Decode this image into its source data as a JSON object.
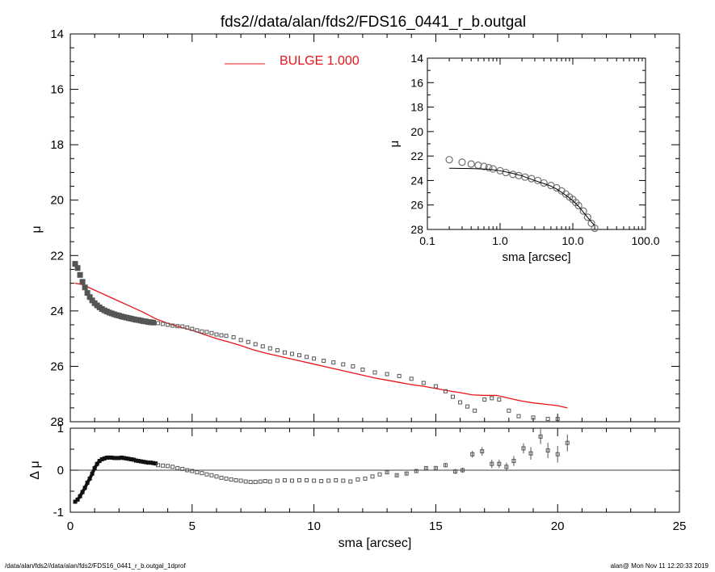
{
  "chart_data": [
    {
      "id": "main",
      "type": "scatter",
      "title": "fds2//data/alan/fds2/FDS16_0441_r_b.outgal",
      "xlabel": "",
      "ylabel": "μ",
      "xlim": [
        0,
        25
      ],
      "ylim": [
        14,
        28
      ],
      "y_inverted": true,
      "x_ticks": [
        0,
        5,
        10,
        15,
        20,
        25
      ],
      "y_ticks": [
        14,
        16,
        18,
        20,
        22,
        24,
        26,
        28
      ],
      "legend": {
        "label": "BULGE  1.000",
        "color": "#e8141a",
        "placement": "top-center"
      },
      "observed": {
        "color": "#555555",
        "points": [
          [
            0.2,
            22.3
          ],
          [
            0.3,
            22.45
          ],
          [
            0.4,
            22.7
          ],
          [
            0.5,
            22.95
          ],
          [
            0.6,
            23.15
          ],
          [
            0.7,
            23.35
          ],
          [
            0.8,
            23.5
          ],
          [
            0.9,
            23.62
          ],
          [
            1.0,
            23.72
          ],
          [
            1.1,
            23.8
          ],
          [
            1.2,
            23.87
          ],
          [
            1.3,
            23.93
          ],
          [
            1.4,
            23.98
          ],
          [
            1.5,
            24.02
          ],
          [
            1.6,
            24.06
          ],
          [
            1.7,
            24.09
          ],
          [
            1.8,
            24.12
          ],
          [
            1.9,
            24.15
          ],
          [
            2.0,
            24.17
          ],
          [
            2.1,
            24.2
          ],
          [
            2.2,
            24.22
          ],
          [
            2.3,
            24.24
          ],
          [
            2.4,
            24.26
          ],
          [
            2.5,
            24.28
          ],
          [
            2.6,
            24.3
          ],
          [
            2.7,
            24.32
          ],
          [
            2.8,
            24.33
          ],
          [
            2.9,
            24.35
          ],
          [
            3.0,
            24.37
          ],
          [
            3.1,
            24.38
          ],
          [
            3.2,
            24.4
          ],
          [
            3.3,
            24.41
          ],
          [
            3.4,
            24.42
          ],
          [
            3.6,
            24.44
          ],
          [
            3.8,
            24.47
          ],
          [
            4.0,
            24.5
          ],
          [
            4.2,
            24.53
          ],
          [
            4.4,
            24.55
          ],
          [
            4.6,
            24.56
          ],
          [
            4.8,
            24.6
          ],
          [
            5.0,
            24.65
          ],
          [
            5.2,
            24.7
          ],
          [
            5.4,
            24.74
          ],
          [
            5.6,
            24.76
          ],
          [
            5.8,
            24.8
          ],
          [
            6.0,
            24.85
          ],
          [
            6.2,
            24.88
          ],
          [
            6.4,
            24.9
          ],
          [
            6.7,
            24.95
          ],
          [
            7.0,
            25.05
          ],
          [
            7.3,
            25.12
          ],
          [
            7.6,
            25.2
          ],
          [
            7.9,
            25.28
          ],
          [
            8.2,
            25.35
          ],
          [
            8.5,
            25.42
          ],
          [
            8.8,
            25.5
          ],
          [
            9.1,
            25.55
          ],
          [
            9.4,
            25.6
          ],
          [
            9.7,
            25.66
          ],
          [
            10.0,
            25.72
          ],
          [
            10.4,
            25.8
          ],
          [
            10.8,
            25.86
          ],
          [
            11.2,
            25.93
          ],
          [
            11.6,
            26.0
          ],
          [
            12.0,
            26.12
          ],
          [
            12.5,
            26.22
          ],
          [
            13.0,
            26.28
          ],
          [
            13.5,
            26.35
          ],
          [
            14.0,
            26.45
          ],
          [
            14.5,
            26.6
          ],
          [
            15.0,
            26.72
          ],
          [
            15.4,
            26.9
          ],
          [
            15.7,
            27.1
          ],
          [
            16.0,
            27.3
          ],
          [
            16.3,
            27.45
          ],
          [
            16.6,
            27.6
          ],
          [
            17.0,
            27.2
          ],
          [
            17.3,
            27.15
          ],
          [
            17.6,
            27.2
          ],
          [
            18.0,
            27.6
          ],
          [
            18.4,
            27.8
          ],
          [
            19.0,
            27.85
          ],
          [
            19.6,
            27.9
          ],
          [
            20.0,
            27.9
          ]
        ]
      },
      "model": {
        "color": "#e8141a",
        "points": [
          [
            0.2,
            23.0
          ],
          [
            0.5,
            23.05
          ],
          [
            1.0,
            23.25
          ],
          [
            1.5,
            23.45
          ],
          [
            2.0,
            23.65
          ],
          [
            2.5,
            23.85
          ],
          [
            3.0,
            24.05
          ],
          [
            3.5,
            24.28
          ],
          [
            4.0,
            24.45
          ],
          [
            4.5,
            24.58
          ],
          [
            5.0,
            24.7
          ],
          [
            5.5,
            24.85
          ],
          [
            6.0,
            25.0
          ],
          [
            6.5,
            25.12
          ],
          [
            7.0,
            25.25
          ],
          [
            7.5,
            25.4
          ],
          [
            8.0,
            25.52
          ],
          [
            8.5,
            25.62
          ],
          [
            9.0,
            25.72
          ],
          [
            9.5,
            25.82
          ],
          [
            10.0,
            25.92
          ],
          [
            10.5,
            26.02
          ],
          [
            11.0,
            26.12
          ],
          [
            11.5,
            26.22
          ],
          [
            12.0,
            26.32
          ],
          [
            12.5,
            26.42
          ],
          [
            13.0,
            26.5
          ],
          [
            13.5,
            26.58
          ],
          [
            14.0,
            26.66
          ],
          [
            14.5,
            26.72
          ],
          [
            15.0,
            26.8
          ],
          [
            15.5,
            26.88
          ],
          [
            16.0,
            26.95
          ],
          [
            16.5,
            27.03
          ],
          [
            17.0,
            27.05
          ],
          [
            17.5,
            27.05
          ],
          [
            18.0,
            27.15
          ],
          [
            18.5,
            27.25
          ],
          [
            19.0,
            27.32
          ],
          [
            19.5,
            27.37
          ],
          [
            20.0,
            27.42
          ],
          [
            20.4,
            27.5
          ]
        ]
      }
    },
    {
      "id": "inset",
      "type": "scatter",
      "title": "",
      "xlabel": "sma [arcsec]",
      "ylabel": "μ",
      "x_scale": "log",
      "xlim": [
        0.1,
        100.0
      ],
      "ylim": [
        14,
        28
      ],
      "y_inverted": true,
      "x_ticks": [
        "0.1",
        "1.0",
        "10.0",
        "100.0"
      ],
      "y_ticks": [
        14,
        16,
        18,
        20,
        22,
        24,
        26,
        28
      ],
      "observed": {
        "color": "#707070",
        "points": [
          [
            0.2,
            22.3
          ],
          [
            0.3,
            22.5
          ],
          [
            0.4,
            22.65
          ],
          [
            0.5,
            22.75
          ],
          [
            0.6,
            22.85
          ],
          [
            0.7,
            22.95
          ],
          [
            0.8,
            23.05
          ],
          [
            1.0,
            23.2
          ],
          [
            1.2,
            23.35
          ],
          [
            1.5,
            23.5
          ],
          [
            1.8,
            23.6
          ],
          [
            2.2,
            23.72
          ],
          [
            2.7,
            23.85
          ],
          [
            3.3,
            24.0
          ],
          [
            4.0,
            24.2
          ],
          [
            5.0,
            24.4
          ],
          [
            6.0,
            24.6
          ],
          [
            7.0,
            24.85
          ],
          [
            8.0,
            25.1
          ],
          [
            9.0,
            25.35
          ],
          [
            10.0,
            25.55
          ],
          [
            11.0,
            25.8
          ],
          [
            12.0,
            26.05
          ],
          [
            14.0,
            26.5
          ],
          [
            16.0,
            27.0
          ],
          [
            18.0,
            27.5
          ],
          [
            20.0,
            27.9
          ]
        ]
      },
      "model": {
        "color": "#000000",
        "points": [
          [
            0.2,
            23.0
          ],
          [
            0.4,
            23.02
          ],
          [
            0.7,
            23.08
          ],
          [
            1.0,
            23.2
          ],
          [
            1.5,
            23.42
          ],
          [
            2.0,
            23.62
          ],
          [
            3.0,
            24.0
          ],
          [
            4.0,
            24.25
          ],
          [
            5.0,
            24.45
          ],
          [
            6.0,
            24.7
          ],
          [
            8.0,
            25.2
          ],
          [
            10.0,
            25.65
          ],
          [
            12.0,
            26.1
          ],
          [
            14.0,
            26.6
          ],
          [
            17.0,
            27.2
          ],
          [
            20.0,
            27.7
          ]
        ]
      }
    },
    {
      "id": "residual",
      "type": "scatter",
      "title": "",
      "xlabel": "sma [arcsec]",
      "ylabel": "Δ μ",
      "xlim": [
        0,
        25
      ],
      "ylim": [
        -1,
        1
      ],
      "x_ticks": [
        0,
        5,
        10,
        15,
        20,
        25
      ],
      "y_ticks": [
        -1,
        0,
        1
      ],
      "zero_line": true,
      "dense": {
        "color": "#111111",
        "points": [
          [
            0.2,
            -0.75
          ],
          [
            0.3,
            -0.7
          ],
          [
            0.4,
            -0.62
          ],
          [
            0.5,
            -0.52
          ],
          [
            0.6,
            -0.42
          ],
          [
            0.7,
            -0.3
          ],
          [
            0.8,
            -0.2
          ],
          [
            0.9,
            -0.08
          ],
          [
            1.0,
            0.05
          ],
          [
            1.1,
            0.15
          ],
          [
            1.2,
            0.22
          ],
          [
            1.3,
            0.26
          ],
          [
            1.4,
            0.28
          ],
          [
            1.5,
            0.3
          ],
          [
            1.6,
            0.3
          ],
          [
            1.7,
            0.3
          ],
          [
            1.8,
            0.29
          ],
          [
            1.9,
            0.29
          ],
          [
            2.0,
            0.29
          ],
          [
            2.1,
            0.3
          ],
          [
            2.2,
            0.29
          ],
          [
            2.3,
            0.28
          ],
          [
            2.4,
            0.27
          ],
          [
            2.5,
            0.26
          ],
          [
            2.6,
            0.25
          ],
          [
            2.7,
            0.23
          ],
          [
            2.8,
            0.22
          ],
          [
            2.9,
            0.21
          ],
          [
            3.0,
            0.2
          ],
          [
            3.1,
            0.19
          ],
          [
            3.2,
            0.18
          ],
          [
            3.3,
            0.18
          ],
          [
            3.4,
            0.17
          ],
          [
            3.5,
            0.16
          ]
        ]
      },
      "points": {
        "color": "#555555",
        "items": [
          [
            3.6,
            0.12,
            0
          ],
          [
            3.8,
            0.11,
            0
          ],
          [
            4.0,
            0.1,
            0
          ],
          [
            4.2,
            0.08,
            0
          ],
          [
            4.4,
            0.05,
            0
          ],
          [
            4.6,
            0.03,
            0
          ],
          [
            4.8,
            0.0,
            0
          ],
          [
            5.0,
            -0.02,
            0
          ],
          [
            5.2,
            -0.05,
            0
          ],
          [
            5.4,
            -0.07,
            0
          ],
          [
            5.6,
            -0.1,
            0
          ],
          [
            5.8,
            -0.12,
            0
          ],
          [
            6.0,
            -0.15,
            0
          ],
          [
            6.2,
            -0.18,
            0
          ],
          [
            6.4,
            -0.2,
            0
          ],
          [
            6.6,
            -0.22,
            0
          ],
          [
            6.8,
            -0.24,
            0
          ],
          [
            7.0,
            -0.25,
            0
          ],
          [
            7.2,
            -0.27,
            0
          ],
          [
            7.4,
            -0.28,
            0
          ],
          [
            7.6,
            -0.28,
            0
          ],
          [
            7.8,
            -0.27,
            0
          ],
          [
            8.0,
            -0.26,
            0
          ],
          [
            8.2,
            -0.27,
            0
          ],
          [
            8.5,
            -0.25,
            0
          ],
          [
            8.8,
            -0.24,
            0
          ],
          [
            9.1,
            -0.25,
            0
          ],
          [
            9.4,
            -0.24,
            0
          ],
          [
            9.7,
            -0.24,
            0
          ],
          [
            10.0,
            -0.25,
            0
          ],
          [
            10.3,
            -0.26,
            0
          ],
          [
            10.6,
            -0.25,
            0
          ],
          [
            10.9,
            -0.24,
            0
          ],
          [
            11.2,
            -0.25,
            0
          ],
          [
            11.5,
            -0.27,
            0
          ],
          [
            11.8,
            -0.22,
            0
          ],
          [
            12.1,
            -0.2,
            0
          ],
          [
            12.4,
            -0.15,
            0
          ],
          [
            12.7,
            -0.1,
            0
          ],
          [
            13.0,
            -0.05,
            0.03
          ],
          [
            13.4,
            -0.12,
            0.03
          ],
          [
            13.8,
            -0.08,
            0.03
          ],
          [
            14.2,
            -0.02,
            0.04
          ],
          [
            14.6,
            0.05,
            0.04
          ],
          [
            15.0,
            0.05,
            0.05
          ],
          [
            15.4,
            0.12,
            0.05
          ],
          [
            15.8,
            -0.03,
            0.06
          ],
          [
            16.1,
            0.0,
            0.06
          ],
          [
            16.5,
            0.38,
            0.08
          ],
          [
            16.9,
            0.45,
            0.1
          ],
          [
            17.3,
            0.15,
            0.1
          ],
          [
            17.6,
            0.15,
            0.1
          ],
          [
            17.9,
            0.08,
            0.1
          ],
          [
            18.2,
            0.22,
            0.12
          ],
          [
            18.6,
            0.52,
            0.12
          ],
          [
            18.9,
            0.4,
            0.15
          ],
          [
            19.3,
            0.8,
            0.18
          ],
          [
            19.6,
            0.47,
            0.18
          ],
          [
            20.0,
            0.38,
            0.2
          ],
          [
            20.4,
            0.65,
            0.2
          ]
        ]
      }
    }
  ],
  "footer": {
    "left": "/data/alan/fds2//data/alan/fds2/FDS16_0441_r_b.outgal_1dprof",
    "right": "alan@  Mon Nov 11 12:20:33 2019"
  }
}
